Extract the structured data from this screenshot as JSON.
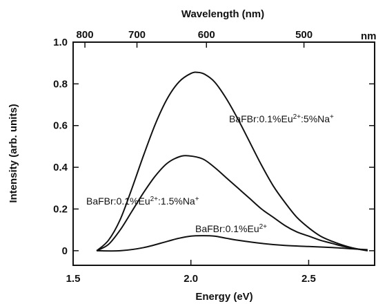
{
  "chart_data": {
    "type": "line",
    "xlabel": "Energy (eV)",
    "ylabel": "Intensity (arb. units)",
    "top_axis_label": "Wavelength (nm)",
    "xlim": [
      1.5,
      2.78
    ],
    "ylim": [
      -0.07,
      1.0
    ],
    "x_ticks": [
      {
        "label": "1.5",
        "value": 1.5
      },
      {
        "label": "2.0",
        "value": 2.0
      },
      {
        "label": "2.5",
        "value": 2.5
      }
    ],
    "y_ticks": [
      {
        "label": "1.0",
        "value": 1.0
      },
      {
        "label": "0.8",
        "value": 0.8
      },
      {
        "label": "0.6",
        "value": 0.6
      },
      {
        "label": "0.4",
        "value": 0.4
      },
      {
        "label": "0.2",
        "value": 0.2
      },
      {
        "label": "0",
        "value": 0.0
      }
    ],
    "top_ticks": [
      {
        "label": "800",
        "energy": 1.55
      },
      {
        "label": "700",
        "energy": 1.771
      },
      {
        "label": "600",
        "energy": 2.066
      },
      {
        "label": "500",
        "energy": 2.48
      }
    ],
    "top_unit_label": "nm",
    "grid": false,
    "series": [
      {
        "name": "BaFBr:0.1%Eu2+:5%Na+",
        "label_parts": [
          "BaFBr:0.1%Eu",
          "2+",
          ":5%Na",
          "+"
        ],
        "x": [
          1.6,
          1.65,
          1.7,
          1.75,
          1.8,
          1.85,
          1.9,
          1.95,
          2.0,
          2.03,
          2.06,
          2.1,
          2.15,
          2.2,
          2.25,
          2.3,
          2.35,
          2.4,
          2.45,
          2.5,
          2.55,
          2.6,
          2.65,
          2.7,
          2.75
        ],
        "y": [
          0.0,
          0.05,
          0.15,
          0.3,
          0.46,
          0.61,
          0.73,
          0.81,
          0.85,
          0.855,
          0.845,
          0.81,
          0.73,
          0.63,
          0.52,
          0.41,
          0.31,
          0.23,
          0.16,
          0.11,
          0.07,
          0.045,
          0.025,
          0.01,
          0.0
        ]
      },
      {
        "name": "BaFBr:0.1%Eu2+:1.5%Na+",
        "label_parts": [
          "BaFBr:0.1%Eu",
          "2+",
          ":1.5%Na",
          "+"
        ],
        "x": [
          1.6,
          1.65,
          1.7,
          1.75,
          1.8,
          1.85,
          1.9,
          1.95,
          1.99,
          2.05,
          2.1,
          2.15,
          2.2,
          2.25,
          2.3,
          2.35,
          2.4,
          2.45,
          2.5,
          2.55,
          2.6,
          2.65,
          2.7,
          2.75
        ],
        "y": [
          0.0,
          0.03,
          0.1,
          0.19,
          0.28,
          0.36,
          0.42,
          0.45,
          0.455,
          0.44,
          0.4,
          0.35,
          0.3,
          0.25,
          0.2,
          0.16,
          0.12,
          0.09,
          0.07,
          0.05,
          0.035,
          0.02,
          0.01,
          0.0
        ]
      },
      {
        "name": "BaFBr:0.1%Eu2+",
        "label_parts": [
          "BaFBr:0.1%Eu",
          "2+",
          "",
          ""
        ],
        "x": [
          1.6,
          1.7,
          1.8,
          1.9,
          1.95,
          2.0,
          2.05,
          2.1,
          2.15,
          2.2,
          2.3,
          2.4,
          2.5,
          2.6,
          2.7,
          2.75
        ],
        "y": [
          0.0,
          0.0,
          0.015,
          0.045,
          0.06,
          0.07,
          0.072,
          0.07,
          0.06,
          0.05,
          0.035,
          0.025,
          0.02,
          0.015,
          0.008,
          0.005
        ]
      }
    ]
  }
}
